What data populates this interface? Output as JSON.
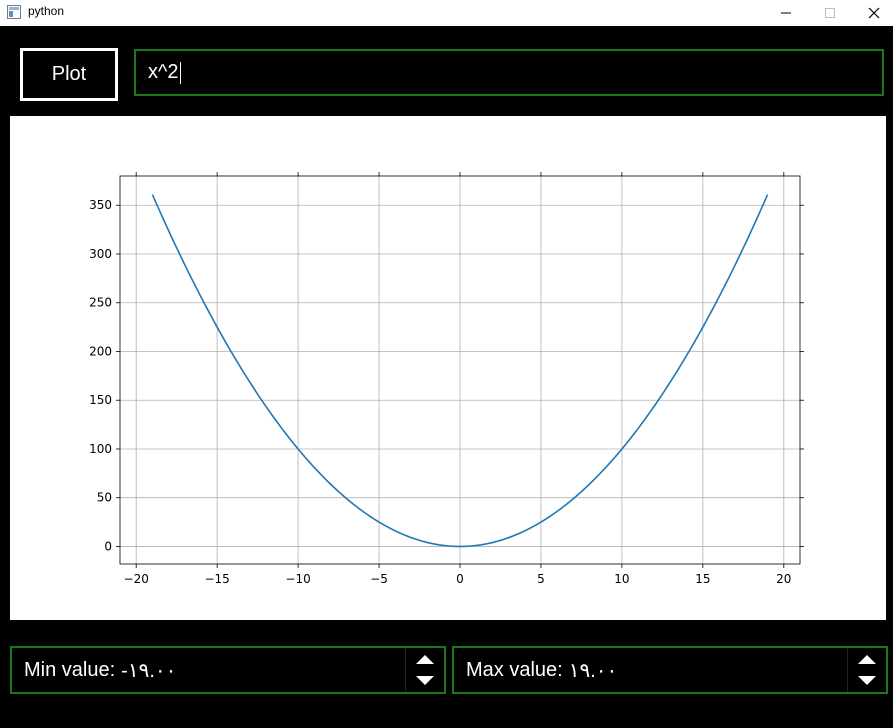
{
  "window": {
    "title": "python",
    "icons": {
      "app": "app-window-icon",
      "minimize": "minimize-icon",
      "maximize": "maximize-icon",
      "close": "close-icon"
    }
  },
  "toolbar": {
    "plot_label": "Plot",
    "function_value": "x^2"
  },
  "chart_data": {
    "type": "line",
    "title": "",
    "xlabel": "",
    "ylabel": "",
    "grid": true,
    "xlim": [
      -21,
      21
    ],
    "ylim": [
      -18,
      380
    ],
    "xticks": [
      -20,
      -15,
      -10,
      -5,
      0,
      5,
      10,
      15,
      20
    ],
    "yticks": [
      0,
      50,
      100,
      150,
      200,
      250,
      300,
      350
    ],
    "xtick_labels": [
      "−20",
      "−15",
      "−10",
      "−5",
      "0",
      "5",
      "10",
      "15",
      "20"
    ],
    "ytick_labels": [
      "0",
      "50",
      "100",
      "150",
      "200",
      "250",
      "300",
      "350"
    ],
    "series": [
      {
        "expression": "x^2",
        "x_range": [
          -19,
          19
        ],
        "color": "#1f77b4"
      }
    ]
  },
  "min_spin": {
    "prefix": "Min value:",
    "value": "-١٩.٠٠",
    "up_icon": "arrow-up-icon",
    "down_icon": "arrow-down-icon"
  },
  "max_spin": {
    "prefix": "Max value:",
    "value": "١٩.٠٠",
    "up_icon": "arrow-up-icon",
    "down_icon": "arrow-down-icon"
  },
  "colors": {
    "background": "#000000",
    "border_green": "#1a7a1a",
    "line": "#1f77b4"
  }
}
